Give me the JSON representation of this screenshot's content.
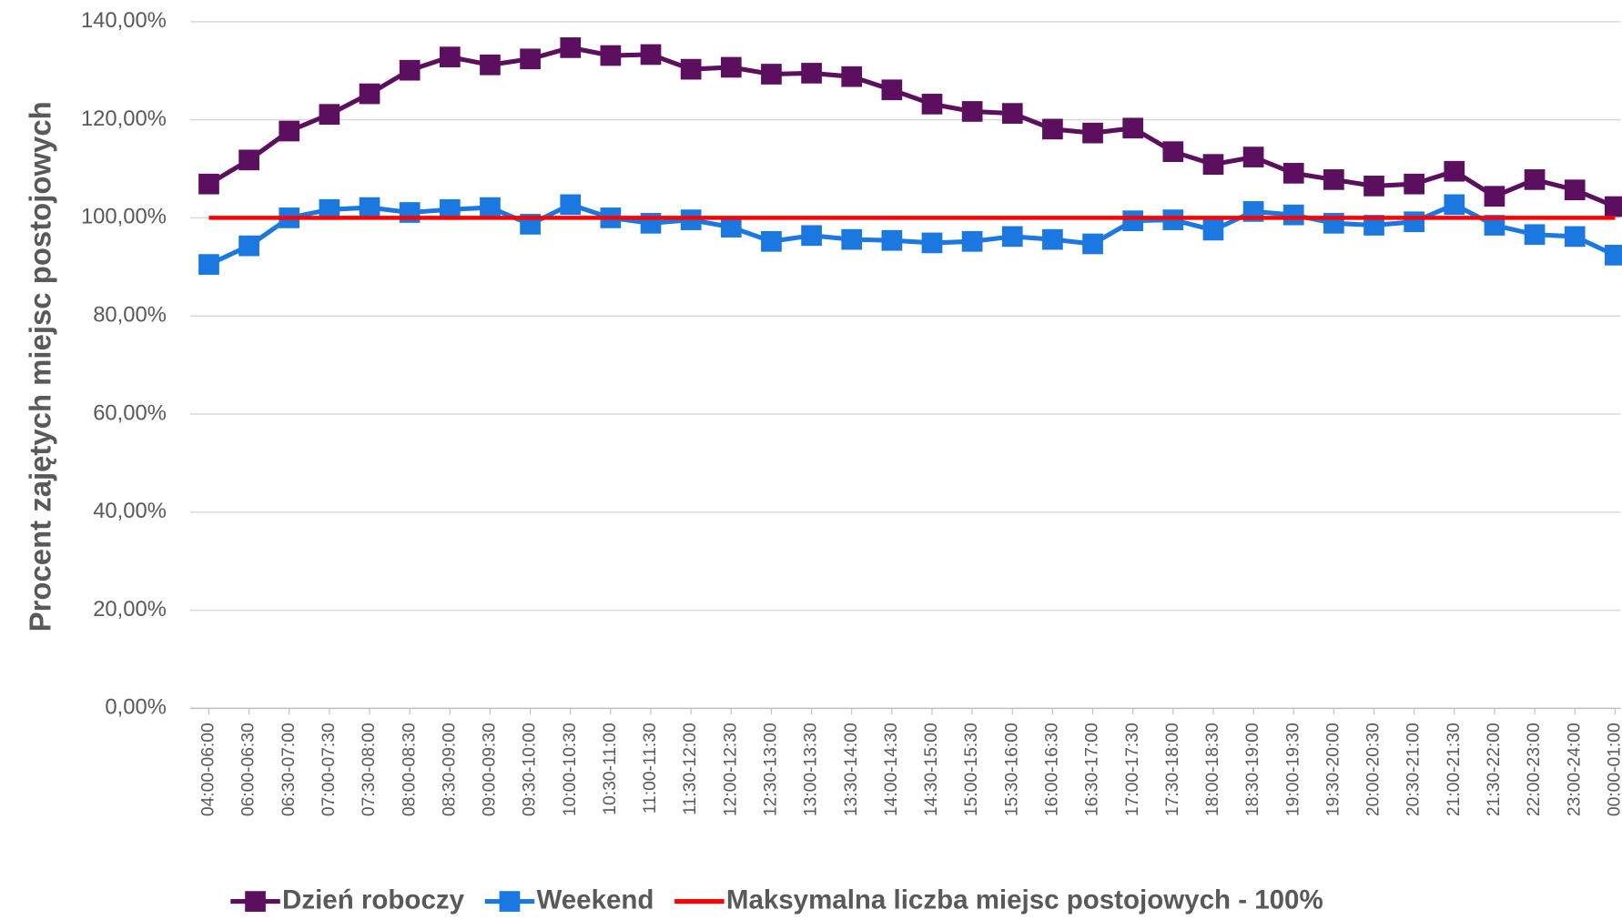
{
  "chart_data": {
    "type": "line",
    "y_label": "Procent zajętych miejsc postojowych",
    "categories": [
      "04:00-06:00",
      "06:00-06:30",
      "06:30-07:00",
      "07:00-07:30",
      "07:30-08:00",
      "08:00-08:30",
      "08:30-09:00",
      "09:00-09:30",
      "09:30-10:00",
      "10:00-10:30",
      "10:30-11:00",
      "11:00-11:30",
      "11:30-12:00",
      "12:00-12:30",
      "12:30-13:00",
      "13:00-13:30",
      "13:30-14:00",
      "14:00-14:30",
      "14:30-15:00",
      "15:00-15:30",
      "15:30-16:00",
      "16:00-16:30",
      "16:30-17:00",
      "17:00-17:30",
      "17:30-18:00",
      "18:00-18:30",
      "18:30-19:00",
      "19:00-19:30",
      "19:30-20:00",
      "20:00-20:30",
      "20:30-21:00",
      "21:00-21:30",
      "21:30-22:00",
      "22:00-23:00",
      "23:00-24:00",
      "00:00-01:00"
    ],
    "series": [
      {
        "name": "Dzień roboczy",
        "color": "#5c0f5e",
        "marker": "square",
        "values": [
          106.9,
          111.8,
          117.7,
          121.1,
          125.3,
          130.1,
          132.8,
          131.2,
          132.4,
          134.7,
          133.1,
          133.3,
          130.3,
          130.7,
          129.3,
          129.5,
          128.8,
          126.1,
          123.2,
          121.7,
          121.3,
          118.1,
          117.3,
          118.3,
          113.5,
          110.9,
          112.4,
          109.1,
          107.8,
          106.5,
          106.9,
          109.5,
          104.4,
          107.8,
          105.7,
          102.3
        ]
      },
      {
        "name": "Weekend",
        "color": "#1a78e0",
        "marker": "square",
        "values": [
          90.5,
          94.3,
          100,
          101.7,
          102.1,
          101.1,
          101.7,
          102.1,
          98.7,
          102.7,
          100,
          98.9,
          99.6,
          98.1,
          95.2,
          96.4,
          95.6,
          95.4,
          94.9,
          95.2,
          96.2,
          95.6,
          94.7,
          99.4,
          99.6,
          97.5,
          101.3,
          100.6,
          98.9,
          98.5,
          99.2,
          102.7,
          98.5,
          96.6,
          96.2,
          92.4
        ]
      },
      {
        "name": "Maksymalna liczba miejsc postojowych - 100%",
        "color": "#ff0000",
        "marker": "none",
        "values": [
          100,
          100,
          100,
          100,
          100,
          100,
          100,
          100,
          100,
          100,
          100,
          100,
          100,
          100,
          100,
          100,
          100,
          100,
          100,
          100,
          100,
          100,
          100,
          100,
          100,
          100,
          100,
          100,
          100,
          100,
          100,
          100,
          100,
          100,
          100,
          100
        ]
      }
    ],
    "ylim": [
      0,
      140
    ],
    "yticks": [
      {
        "value": 0,
        "label": "0,00%"
      },
      {
        "value": 20,
        "label": "20,00%"
      },
      {
        "value": 40,
        "label": "40,00%"
      },
      {
        "value": 60,
        "label": "60,00%"
      },
      {
        "value": 80,
        "label": "80,00%"
      },
      {
        "value": 100,
        "label": "100,00%"
      },
      {
        "value": 120,
        "label": "120,00%"
      },
      {
        "value": 140,
        "label": "140,00%"
      }
    ],
    "grid": true,
    "legend": "bottom"
  }
}
